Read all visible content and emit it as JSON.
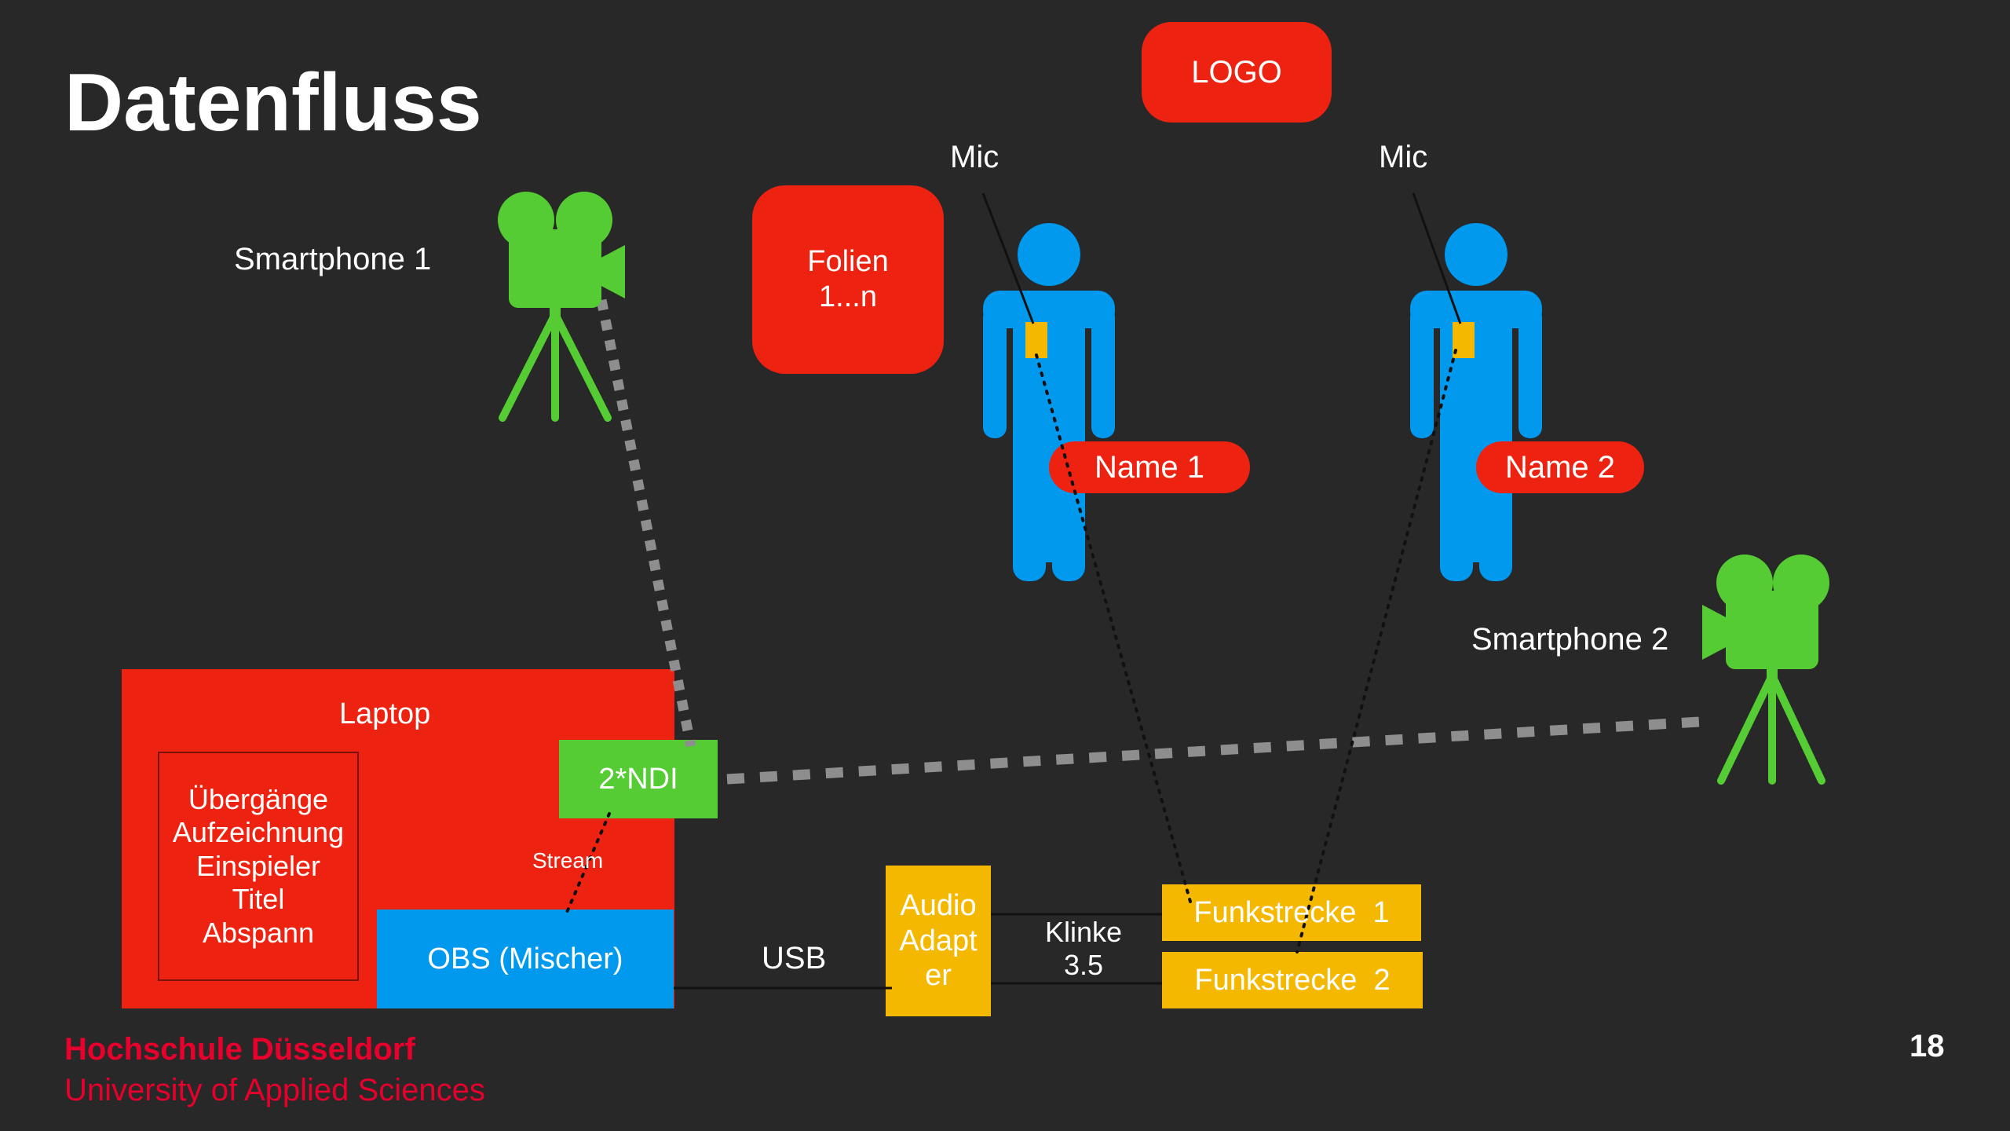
{
  "slide": {
    "title": "Datenfluss",
    "page_number": "18",
    "footer": {
      "institution": "Hochschule Düsseldorf",
      "subtitle": "University of Applied Sciences"
    }
  },
  "colors": {
    "background": "#282828",
    "red": "#ee2211",
    "blue": "#0099ee",
    "green": "#55cc33",
    "yellow": "#f5b800",
    "hsd_red": "#e8002d",
    "dashed_link": "#8e8e8e"
  },
  "labels": {
    "logo": "LOGO",
    "folien": [
      "Folien",
      "1...n"
    ],
    "mic_1": "Mic",
    "mic_2": "Mic",
    "name_1": "Name 1",
    "name_2": "Name 2",
    "smartphone_1": "Smartphone 1",
    "smartphone_2": "Smartphone 2",
    "laptop": "Laptop",
    "laptop_features": [
      "Übergänge",
      "Aufzeichnung",
      "Einspieler",
      "Titel",
      "Abspann"
    ],
    "ndi": "2*NDI",
    "stream": "Stream",
    "obs": "OBS (Mischer)",
    "usb": "USB",
    "audio_adapter": [
      "Audio",
      "Adapt",
      "er"
    ],
    "klinke": [
      "Klinke",
      "3.5"
    ],
    "funkstrecke_1": "Funkstrecke  1",
    "funkstrecke_2": "Funkstrecke  2"
  },
  "icons": {
    "camera_1": "movie-camera-on-tripod-icon",
    "camera_2": "movie-camera-on-tripod-icon",
    "person_1": "person-icon",
    "person_2": "person-icon"
  }
}
